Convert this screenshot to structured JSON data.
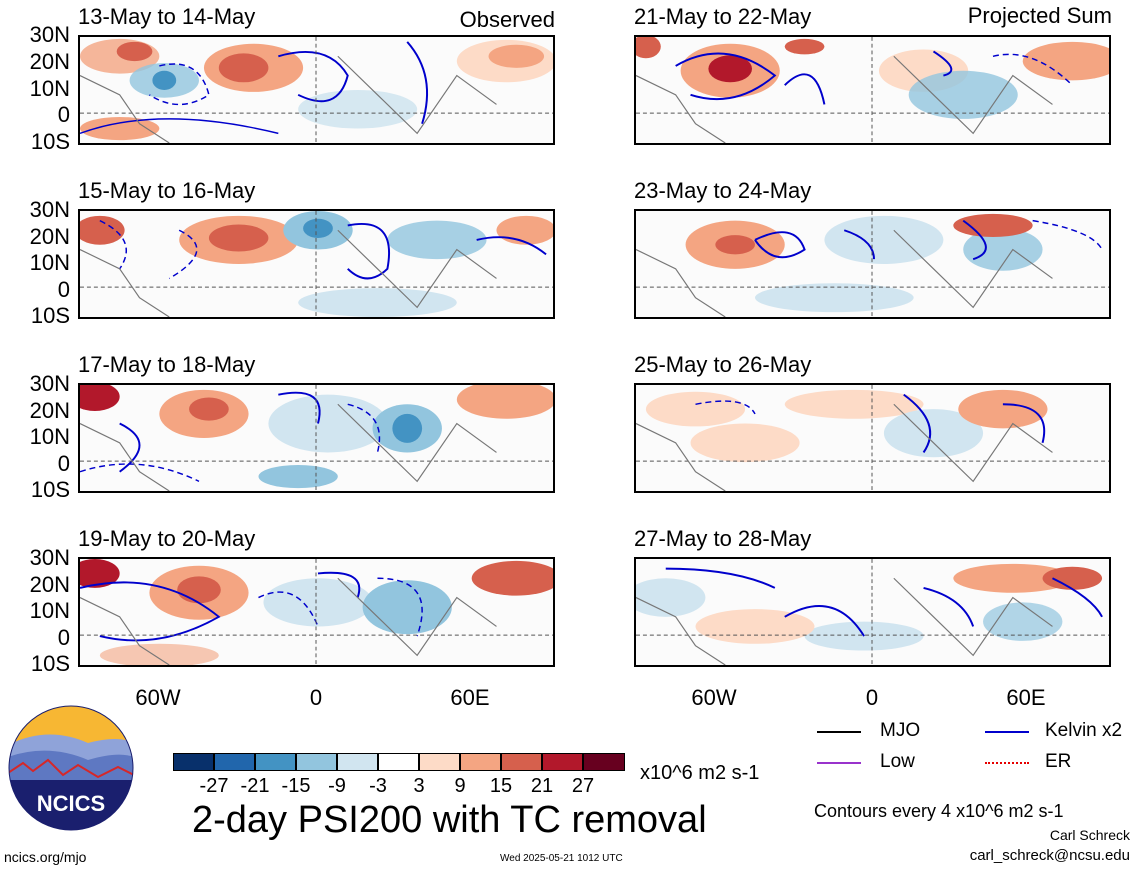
{
  "headers": {
    "observed": "Observed",
    "projected": "Projected Sum"
  },
  "left_panels": [
    {
      "title": "13-May to 14-May"
    },
    {
      "title": "15-May to 16-May"
    },
    {
      "title": "17-May to 18-May"
    },
    {
      "title": "19-May to 20-May"
    }
  ],
  "right_panels": [
    {
      "title": "21-May to 22-May"
    },
    {
      "title": "23-May to 24-May"
    },
    {
      "title": "25-May to 26-May"
    },
    {
      "title": "27-May to 28-May"
    }
  ],
  "lat_labels": [
    "30N",
    "20N",
    "10N",
    "0",
    "10S"
  ],
  "lon_labels": [
    "60W",
    "0",
    "60E"
  ],
  "colorbar": {
    "labels": [
      "-27",
      "-21",
      "-15",
      "-9",
      "-3",
      "3",
      "9",
      "15",
      "21",
      "27"
    ],
    "colors": [
      "#08306b",
      "#2166ac",
      "#4393c3",
      "#92c5de",
      "#d1e5f0",
      "#ffffff",
      "#fddbc7",
      "#f4a582",
      "#d6604d",
      "#b2182b",
      "#67001f"
    ],
    "units": "x10^6 m2 s-1"
  },
  "legend": {
    "mjo": "MJO",
    "kelvin": "Kelvin x2",
    "low": "Low",
    "er": "ER",
    "colors": {
      "mjo": "#000000",
      "kelvin": "#0000cc",
      "low": "#9933cc",
      "er": "#e60000"
    }
  },
  "main_title": "2-day PSI200 with TC removal",
  "contour_note": "Contours every 4 x10^6 m2 s-1",
  "author": "Carl Schreck",
  "email": "carl_schreck@ncsu.edu",
  "website": "ncics.org/mjo",
  "timestamp": "Wed 2025-05-21 1012 UTC",
  "logo_text": "NCICS"
}
